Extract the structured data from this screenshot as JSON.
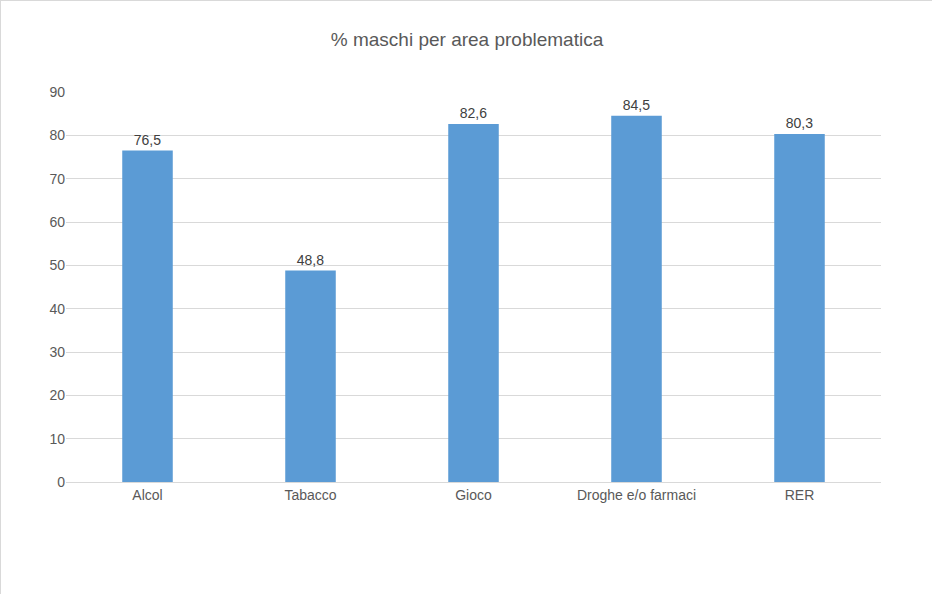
{
  "chart_data": {
    "type": "bar",
    "title": "% maschi per area problematica",
    "categories": [
      "Alcol",
      "Tabacco",
      "Gioco",
      "Droghe e/o farmaci",
      "RER"
    ],
    "values": [
      76.5,
      48.8,
      82.6,
      84.5,
      80.3
    ],
    "value_labels": [
      "76,5",
      "48,8",
      "82,6",
      "84,5",
      "80,3"
    ],
    "data_labels": true,
    "color": "#5b9bd5",
    "ylim": [
      0,
      90
    ],
    "yticks": [
      0,
      10,
      20,
      30,
      40,
      50,
      60,
      70,
      80,
      90
    ],
    "grid": true
  }
}
